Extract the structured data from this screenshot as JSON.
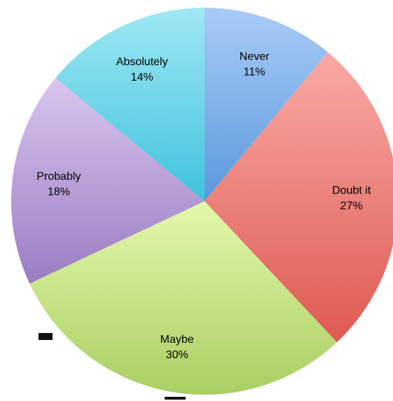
{
  "chart_data": {
    "type": "pie",
    "title": "",
    "start": "12 o'clock",
    "direction": "clockwise",
    "slices": [
      {
        "label": "Never",
        "value_label": "11%",
        "value": 11,
        "color_light": "#a9ccf6",
        "color_dark": "#5a98dc"
      },
      {
        "label": "Doubt it",
        "value_label": "27%",
        "value": 27,
        "color_light": "#f9aaa6",
        "color_dark": "#dd5a51"
      },
      {
        "label": "Maybe",
        "value_label": "30%",
        "value": 30,
        "color_light": "#e4f8ab",
        "color_dark": "#a9cf63"
      },
      {
        "label": "Probably",
        "value_label": "18%",
        "value": 18,
        "color_light": "#d8c6ee",
        "color_dark": "#9a7cc2"
      },
      {
        "label": "Absolutely",
        "value_label": "14%",
        "value": 14,
        "color_light": "#9fe8f4",
        "color_dark": "#3fc2dc"
      }
    ]
  }
}
